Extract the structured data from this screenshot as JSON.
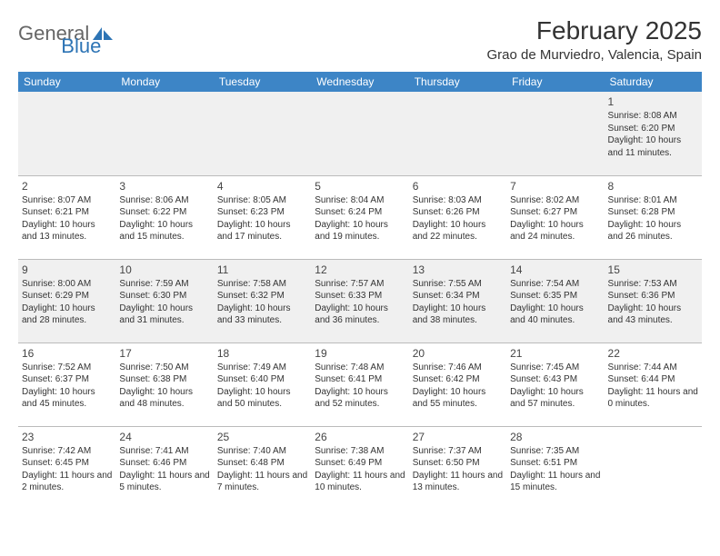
{
  "brand": {
    "word1": "General",
    "word2": "Blue"
  },
  "title": "February 2025",
  "location": "Grao de Murviedro, Valencia, Spain",
  "colors": {
    "header_bg": "#3d85c6",
    "header_text": "#ffffff",
    "shade_bg": "#f0f0f0",
    "border": "#bbbbbb",
    "brand_gray": "#666666",
    "brand_blue": "#2d74b5"
  },
  "dayNames": [
    "Sunday",
    "Monday",
    "Tuesday",
    "Wednesday",
    "Thursday",
    "Friday",
    "Saturday"
  ],
  "weeks": [
    [
      {
        "num": "",
        "sunrise": "",
        "sunset": "",
        "daylight": ""
      },
      {
        "num": "",
        "sunrise": "",
        "sunset": "",
        "daylight": ""
      },
      {
        "num": "",
        "sunrise": "",
        "sunset": "",
        "daylight": ""
      },
      {
        "num": "",
        "sunrise": "",
        "sunset": "",
        "daylight": ""
      },
      {
        "num": "",
        "sunrise": "",
        "sunset": "",
        "daylight": ""
      },
      {
        "num": "",
        "sunrise": "",
        "sunset": "",
        "daylight": ""
      },
      {
        "num": "1",
        "sunrise": "Sunrise: 8:08 AM",
        "sunset": "Sunset: 6:20 PM",
        "daylight": "Daylight: 10 hours and 11 minutes."
      }
    ],
    [
      {
        "num": "2",
        "sunrise": "Sunrise: 8:07 AM",
        "sunset": "Sunset: 6:21 PM",
        "daylight": "Daylight: 10 hours and 13 minutes."
      },
      {
        "num": "3",
        "sunrise": "Sunrise: 8:06 AM",
        "sunset": "Sunset: 6:22 PM",
        "daylight": "Daylight: 10 hours and 15 minutes."
      },
      {
        "num": "4",
        "sunrise": "Sunrise: 8:05 AM",
        "sunset": "Sunset: 6:23 PM",
        "daylight": "Daylight: 10 hours and 17 minutes."
      },
      {
        "num": "5",
        "sunrise": "Sunrise: 8:04 AM",
        "sunset": "Sunset: 6:24 PM",
        "daylight": "Daylight: 10 hours and 19 minutes."
      },
      {
        "num": "6",
        "sunrise": "Sunrise: 8:03 AM",
        "sunset": "Sunset: 6:26 PM",
        "daylight": "Daylight: 10 hours and 22 minutes."
      },
      {
        "num": "7",
        "sunrise": "Sunrise: 8:02 AM",
        "sunset": "Sunset: 6:27 PM",
        "daylight": "Daylight: 10 hours and 24 minutes."
      },
      {
        "num": "8",
        "sunrise": "Sunrise: 8:01 AM",
        "sunset": "Sunset: 6:28 PM",
        "daylight": "Daylight: 10 hours and 26 minutes."
      }
    ],
    [
      {
        "num": "9",
        "sunrise": "Sunrise: 8:00 AM",
        "sunset": "Sunset: 6:29 PM",
        "daylight": "Daylight: 10 hours and 28 minutes."
      },
      {
        "num": "10",
        "sunrise": "Sunrise: 7:59 AM",
        "sunset": "Sunset: 6:30 PM",
        "daylight": "Daylight: 10 hours and 31 minutes."
      },
      {
        "num": "11",
        "sunrise": "Sunrise: 7:58 AM",
        "sunset": "Sunset: 6:32 PM",
        "daylight": "Daylight: 10 hours and 33 minutes."
      },
      {
        "num": "12",
        "sunrise": "Sunrise: 7:57 AM",
        "sunset": "Sunset: 6:33 PM",
        "daylight": "Daylight: 10 hours and 36 minutes."
      },
      {
        "num": "13",
        "sunrise": "Sunrise: 7:55 AM",
        "sunset": "Sunset: 6:34 PM",
        "daylight": "Daylight: 10 hours and 38 minutes."
      },
      {
        "num": "14",
        "sunrise": "Sunrise: 7:54 AM",
        "sunset": "Sunset: 6:35 PM",
        "daylight": "Daylight: 10 hours and 40 minutes."
      },
      {
        "num": "15",
        "sunrise": "Sunrise: 7:53 AM",
        "sunset": "Sunset: 6:36 PM",
        "daylight": "Daylight: 10 hours and 43 minutes."
      }
    ],
    [
      {
        "num": "16",
        "sunrise": "Sunrise: 7:52 AM",
        "sunset": "Sunset: 6:37 PM",
        "daylight": "Daylight: 10 hours and 45 minutes."
      },
      {
        "num": "17",
        "sunrise": "Sunrise: 7:50 AM",
        "sunset": "Sunset: 6:38 PM",
        "daylight": "Daylight: 10 hours and 48 minutes."
      },
      {
        "num": "18",
        "sunrise": "Sunrise: 7:49 AM",
        "sunset": "Sunset: 6:40 PM",
        "daylight": "Daylight: 10 hours and 50 minutes."
      },
      {
        "num": "19",
        "sunrise": "Sunrise: 7:48 AM",
        "sunset": "Sunset: 6:41 PM",
        "daylight": "Daylight: 10 hours and 52 minutes."
      },
      {
        "num": "20",
        "sunrise": "Sunrise: 7:46 AM",
        "sunset": "Sunset: 6:42 PM",
        "daylight": "Daylight: 10 hours and 55 minutes."
      },
      {
        "num": "21",
        "sunrise": "Sunrise: 7:45 AM",
        "sunset": "Sunset: 6:43 PM",
        "daylight": "Daylight: 10 hours and 57 minutes."
      },
      {
        "num": "22",
        "sunrise": "Sunrise: 7:44 AM",
        "sunset": "Sunset: 6:44 PM",
        "daylight": "Daylight: 11 hours and 0 minutes."
      }
    ],
    [
      {
        "num": "23",
        "sunrise": "Sunrise: 7:42 AM",
        "sunset": "Sunset: 6:45 PM",
        "daylight": "Daylight: 11 hours and 2 minutes."
      },
      {
        "num": "24",
        "sunrise": "Sunrise: 7:41 AM",
        "sunset": "Sunset: 6:46 PM",
        "daylight": "Daylight: 11 hours and 5 minutes."
      },
      {
        "num": "25",
        "sunrise": "Sunrise: 7:40 AM",
        "sunset": "Sunset: 6:48 PM",
        "daylight": "Daylight: 11 hours and 7 minutes."
      },
      {
        "num": "26",
        "sunrise": "Sunrise: 7:38 AM",
        "sunset": "Sunset: 6:49 PM",
        "daylight": "Daylight: 11 hours and 10 minutes."
      },
      {
        "num": "27",
        "sunrise": "Sunrise: 7:37 AM",
        "sunset": "Sunset: 6:50 PM",
        "daylight": "Daylight: 11 hours and 13 minutes."
      },
      {
        "num": "28",
        "sunrise": "Sunrise: 7:35 AM",
        "sunset": "Sunset: 6:51 PM",
        "daylight": "Daylight: 11 hours and 15 minutes."
      },
      {
        "num": "",
        "sunrise": "",
        "sunset": "",
        "daylight": ""
      }
    ]
  ]
}
